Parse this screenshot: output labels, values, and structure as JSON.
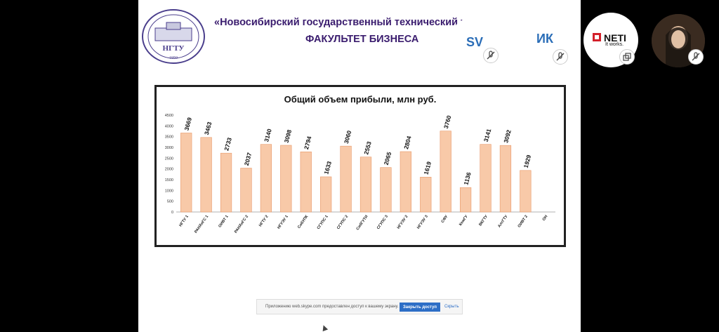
{
  "slide": {
    "header_title": "«Новосибирский государственный технический уни",
    "header_subtitle": "ФАКУЛЬТЕТ БИЗНЕСА",
    "logo": {
      "lettering": "НГТУ",
      "year": "1950"
    }
  },
  "chart_data": {
    "type": "bar",
    "title": "Общий объем прибыли, млн руб.",
    "categories": [
      "НГТУ 1",
      "РАНХиГС 1",
      "ОИВТ 1",
      "РАНХиГС 2",
      "НГТУ 2",
      "НГУЭУ 1",
      "СибУПК",
      "СГУПС 1",
      "СГУПС 2",
      "СибГУТИ",
      "СГУПС 3",
      "НГУЭУ 2",
      "НГУЭУ 3",
      "СФУ",
      "КемГУ",
      "ВКГТУ",
      "АлтГТУ",
      "ОИВТ 2",
      "ОН"
    ],
    "values": [
      3669,
      3463,
      2733,
      2037,
      3140,
      3098,
      2794,
      1633,
      3060,
      2553,
      2065,
      2804,
      1619,
      3760,
      1136,
      3141,
      3092,
      1929,
      null
    ],
    "value_labels": [
      "3669",
      "3463",
      "2733",
      "2037",
      "3140",
      "3098",
      "2794",
      "1633",
      "3060",
      "2553",
      "2065",
      "2804",
      "1619",
      "3760",
      "1136",
      "3141",
      "3092",
      "1929",
      ""
    ],
    "yticks": [
      "0",
      "500",
      "1000",
      "1500",
      "2000",
      "2500",
      "3000",
      "3500",
      "4000",
      "4500"
    ],
    "ylim": [
      0,
      4500
    ],
    "bar_color": "#f8c9a8",
    "bar_edge": "#e89868"
  },
  "participants": [
    {
      "initials": "SV",
      "mic": "mic-off-icon"
    },
    {
      "initials": "ИК",
      "mic": "mic-off-icon"
    },
    {
      "name": "NETI",
      "tagline": "It works.",
      "icon": "popout-icon"
    },
    {
      "mic": "mic-off-icon"
    }
  ],
  "share_bar": {
    "text": "Приложению web.skype.com предоставлен доступ к вашему экрану.",
    "stop_button": "Закрыть доступ",
    "hide_link": "Скрыть"
  }
}
